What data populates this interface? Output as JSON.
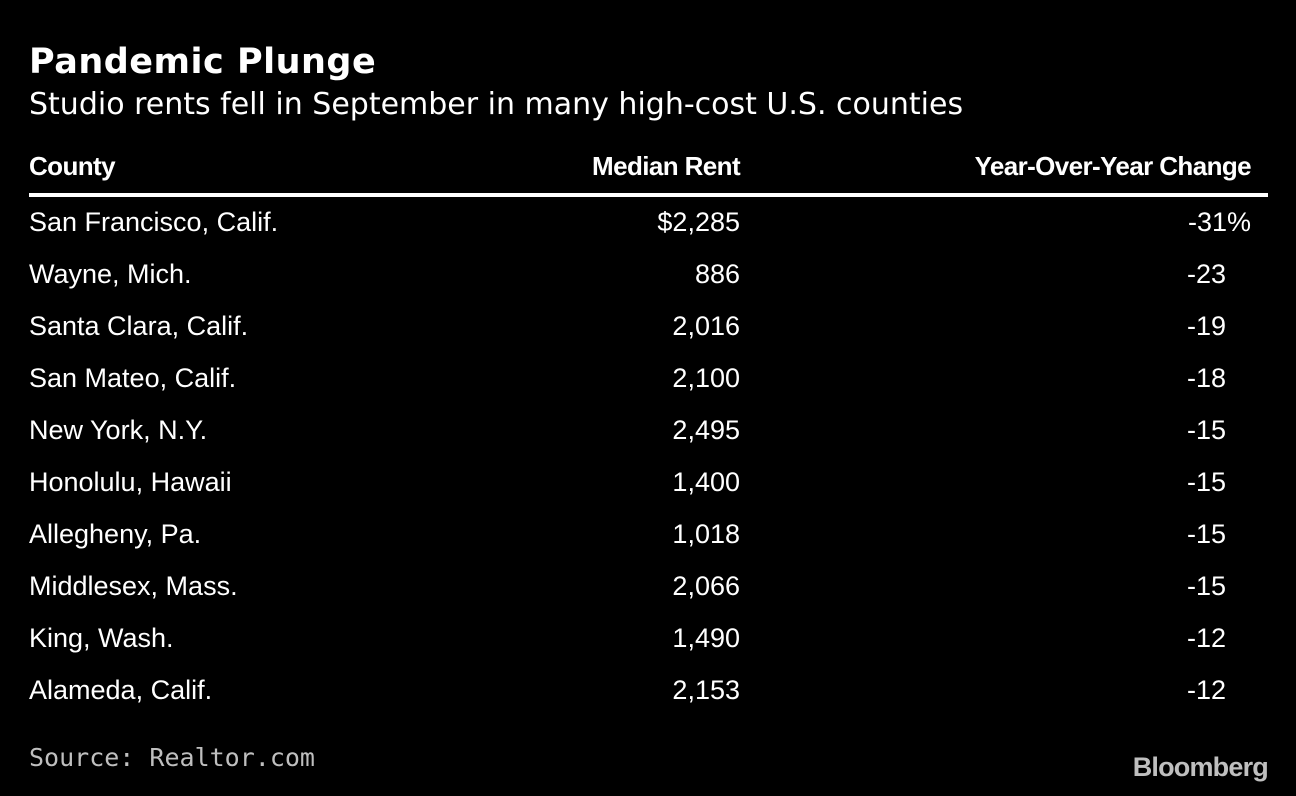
{
  "colors": {
    "background": "#000000",
    "text": "#ffffff",
    "muted": "#bfbfbf"
  },
  "chart_data": {
    "type": "table",
    "title": "Pandemic Plunge",
    "subtitle": "Studio rents fell in September in many high-cost U.S. counties",
    "columns": [
      "County",
      "Median Rent",
      "Year-Over-Year Change"
    ],
    "rows": [
      {
        "county": "San Francisco, Calif.",
        "rent": "$2,285",
        "change": "-31%"
      },
      {
        "county": "Wayne, Mich.",
        "rent": "886",
        "change": "-23"
      },
      {
        "county": "Santa Clara, Calif.",
        "rent": "2,016",
        "change": "-19"
      },
      {
        "county": "San Mateo, Calif.",
        "rent": "2,100",
        "change": "-18"
      },
      {
        "county": "New York, N.Y.",
        "rent": "2,495",
        "change": "-15"
      },
      {
        "county": "Honolulu, Hawaii",
        "rent": "1,400",
        "change": "-15"
      },
      {
        "county": "Allegheny, Pa.",
        "rent": "1,018",
        "change": "-15"
      },
      {
        "county": "Middlesex, Mass.",
        "rent": "2,066",
        "change": "-15"
      },
      {
        "county": "King, Wash.",
        "rent": "1,490",
        "change": "-12"
      },
      {
        "county": "Alameda, Calif.",
        "rent": "2,153",
        "change": "-12"
      }
    ],
    "source": "Source: Realtor.com",
    "logo": "Bloomberg"
  }
}
